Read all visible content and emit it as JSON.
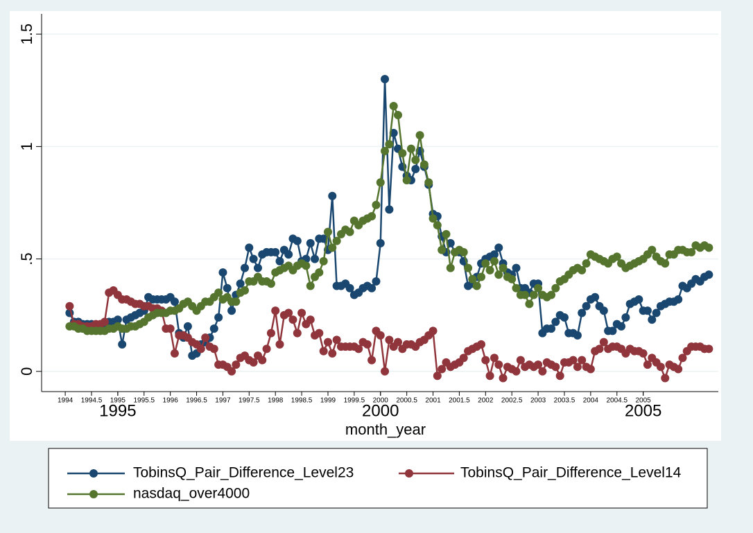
{
  "chart_data": {
    "type": "line",
    "xlabel": "month_year",
    "xlim": [
      1993.55,
      2006.43
    ],
    "ylim": [
      -0.09,
      1.59
    ],
    "yticks": [
      0,
      {
        "value": 0.5,
        "label": ".5"
      },
      1,
      1.5
    ],
    "xticks": [
      1994,
      1994.5,
      1995,
      1995.5,
      1996,
      1996.5,
      1997,
      1997.5,
      1998,
      1998.5,
      1999,
      1999.5,
      2000,
      2000.5,
      2001,
      2001.5,
      2002,
      2002.5,
      2003,
      2003.5,
      2004,
      2004.5,
      2005
    ],
    "xticks_major": [
      1995,
      2000,
      2005
    ],
    "grid": true,
    "x": [
      1994.083,
      1994.167,
      1994.25,
      1994.333,
      1994.417,
      1994.5,
      1994.583,
      1994.667,
      1994.75,
      1994.833,
      1994.917,
      1995,
      1995.083,
      1995.167,
      1995.25,
      1995.333,
      1995.417,
      1995.5,
      1995.583,
      1995.667,
      1995.75,
      1995.833,
      1995.917,
      1996,
      1996.083,
      1996.167,
      1996.25,
      1996.333,
      1996.417,
      1996.5,
      1996.583,
      1996.667,
      1996.75,
      1996.833,
      1996.917,
      1997,
      1997.083,
      1997.167,
      1997.25,
      1997.333,
      1997.417,
      1997.5,
      1997.583,
      1997.667,
      1997.75,
      1997.833,
      1997.917,
      1998,
      1998.083,
      1998.167,
      1998.25,
      1998.333,
      1998.417,
      1998.5,
      1998.583,
      1998.667,
      1998.75,
      1998.833,
      1998.917,
      1999,
      1999.083,
      1999.167,
      1999.25,
      1999.333,
      1999.417,
      1999.5,
      1999.583,
      1999.667,
      1999.75,
      1999.833,
      1999.917,
      2000,
      2000.083,
      2000.167,
      2000.25,
      2000.333,
      2000.417,
      2000.5,
      2000.583,
      2000.667,
      2000.75,
      2000.833,
      2000.917,
      2001,
      2001.083,
      2001.167,
      2001.25,
      2001.333,
      2001.417,
      2001.5,
      2001.583,
      2001.667,
      2001.75,
      2001.833,
      2001.917,
      2002,
      2002.083,
      2002.167,
      2002.25,
      2002.333,
      2002.417,
      2002.5,
      2002.583,
      2002.667,
      2002.75,
      2002.833,
      2002.917,
      2003,
      2003.083,
      2003.167,
      2003.25,
      2003.333,
      2003.417,
      2003.5,
      2003.583,
      2003.667,
      2003.75,
      2003.833,
      2003.917,
      2004,
      2004.083,
      2004.167,
      2004.25,
      2004.333,
      2004.417,
      2004.5,
      2004.583,
      2004.667,
      2004.75,
      2004.833,
      2004.917,
      2005,
      2005.083,
      2005.167,
      2005.25,
      2005.333,
      2005.417,
      2005.5,
      2005.583,
      2005.667,
      2005.75,
      2005.833,
      2005.917,
      2006,
      2006.083,
      2006.167,
      2006.25
    ],
    "series": [
      {
        "name": "TobinsQ_Pair_Difference_Level23",
        "color": "#1a476f",
        "values": [
          0.26,
          0.22,
          0.22,
          0.21,
          0.21,
          0.21,
          0.2,
          0.2,
          0.21,
          0.22,
          0.22,
          0.23,
          0.12,
          0.23,
          0.24,
          0.25,
          0.26,
          0.27,
          0.33,
          0.32,
          0.32,
          0.32,
          0.32,
          0.33,
          0.31,
          0.17,
          0.15,
          0.2,
          0.07,
          0.08,
          0.12,
          0.13,
          0.15,
          0.19,
          0.24,
          0.44,
          0.37,
          0.27,
          0.34,
          0.39,
          0.46,
          0.55,
          0.5,
          0.46,
          0.52,
          0.53,
          0.53,
          0.53,
          0.49,
          0.54,
          0.52,
          0.59,
          0.58,
          0.49,
          0.5,
          0.57,
          0.5,
          0.59,
          0.59,
          0.54,
          0.78,
          0.38,
          0.38,
          0.39,
          0.37,
          0.34,
          0.35,
          0.37,
          0.38,
          0.37,
          0.4,
          0.57,
          1.3,
          0.72,
          1.06,
          0.99,
          0.91,
          0.87,
          0.85,
          0.9,
          0.98,
          0.91,
          0.83,
          0.7,
          0.69,
          0.6,
          0.53,
          0.57,
          0.53,
          0.53,
          0.49,
          0.38,
          0.39,
          0.42,
          0.48,
          0.5,
          0.51,
          0.52,
          0.55,
          0.48,
          0.44,
          0.43,
          0.46,
          0.37,
          0.37,
          0.35,
          0.39,
          0.39,
          0.17,
          0.19,
          0.19,
          0.22,
          0.25,
          0.24,
          0.17,
          0.17,
          0.16,
          0.26,
          0.29,
          0.32,
          0.33,
          0.29,
          0.27,
          0.18,
          0.18,
          0.21,
          0.2,
          0.24,
          0.3,
          0.31,
          0.32,
          0.27,
          0.27,
          0.23,
          0.26,
          0.29,
          0.3,
          0.31,
          0.31,
          0.32,
          0.38,
          0.37,
          0.39,
          0.41,
          0.4,
          0.42,
          0.43
        ]
      },
      {
        "name": "TobinsQ_Pair_Difference_Level14",
        "color": "#90353b",
        "values": [
          0.29,
          0.21,
          0.21,
          0.2,
          0.2,
          0.2,
          0.21,
          0.21,
          0.22,
          0.35,
          0.36,
          0.34,
          0.32,
          0.32,
          0.31,
          0.3,
          0.3,
          0.29,
          0.29,
          0.28,
          0.28,
          0.27,
          0.19,
          0.19,
          0.08,
          0.16,
          0.16,
          0.15,
          0.13,
          0.12,
          0.1,
          0.15,
          0.11,
          0.1,
          0.03,
          0.03,
          0.02,
          0.0,
          0.03,
          0.06,
          0.07,
          0.05,
          0.04,
          0.07,
          0.05,
          0.1,
          0.17,
          0.27,
          0.12,
          0.25,
          0.26,
          0.23,
          0.17,
          0.26,
          0.21,
          0.23,
          0.16,
          0.17,
          0.09,
          0.13,
          0.08,
          0.14,
          0.11,
          0.11,
          0.11,
          0.11,
          0.1,
          0.13,
          0.12,
          0.05,
          0.18,
          0.16,
          0.0,
          0.14,
          0.11,
          0.13,
          0.1,
          0.12,
          0.12,
          0.11,
          0.13,
          0.14,
          0.16,
          0.18,
          -0.02,
          0.01,
          0.04,
          0.02,
          0.03,
          0.04,
          0.06,
          0.09,
          0.1,
          0.11,
          0.12,
          0.05,
          -0.02,
          0.06,
          0.03,
          -0.03,
          0.02,
          0.01,
          0.0,
          0.05,
          0.02,
          0.03,
          0.02,
          0.03,
          0.0,
          0.04,
          0.03,
          0.02,
          -0.02,
          0.04,
          0.04,
          0.05,
          0.02,
          0.05,
          0.02,
          0.01,
          0.09,
          0.1,
          0.13,
          0.1,
          0.11,
          0.11,
          0.1,
          0.08,
          0.1,
          0.09,
          0.09,
          0.08,
          0.03,
          0.06,
          0.04,
          0.02,
          -0.03,
          0.03,
          0.02,
          0.01,
          0.06,
          0.09,
          0.11,
          0.11,
          0.11,
          0.1,
          0.1
        ]
      },
      {
        "name": "nasdaq_over4000",
        "color": "#55752f",
        "values": [
          0.2,
          0.2,
          0.19,
          0.19,
          0.18,
          0.18,
          0.18,
          0.18,
          0.18,
          0.19,
          0.19,
          0.2,
          0.19,
          0.19,
          0.2,
          0.2,
          0.21,
          0.22,
          0.24,
          0.25,
          0.26,
          0.26,
          0.26,
          0.27,
          0.27,
          0.28,
          0.3,
          0.31,
          0.29,
          0.27,
          0.29,
          0.31,
          0.31,
          0.33,
          0.35,
          0.32,
          0.33,
          0.31,
          0.31,
          0.35,
          0.36,
          0.4,
          0.4,
          0.42,
          0.4,
          0.4,
          0.39,
          0.44,
          0.45,
          0.46,
          0.47,
          0.45,
          0.47,
          0.48,
          0.47,
          0.38,
          0.42,
          0.44,
          0.49,
          0.62,
          0.55,
          0.58,
          0.61,
          0.63,
          0.62,
          0.67,
          0.65,
          0.67,
          0.68,
          0.69,
          0.74,
          0.84,
          0.98,
          1.01,
          1.18,
          1.14,
          0.97,
          0.85,
          0.99,
          0.94,
          1.05,
          0.92,
          0.84,
          0.68,
          0.65,
          0.54,
          0.61,
          0.46,
          0.53,
          0.54,
          0.53,
          0.46,
          0.41,
          0.38,
          0.42,
          0.48,
          0.45,
          0.49,
          0.43,
          0.46,
          0.42,
          0.41,
          0.37,
          0.34,
          0.34,
          0.3,
          0.34,
          0.37,
          0.34,
          0.33,
          0.34,
          0.37,
          0.4,
          0.41,
          0.43,
          0.45,
          0.46,
          0.45,
          0.48,
          0.52,
          0.51,
          0.5,
          0.49,
          0.48,
          0.5,
          0.51,
          0.48,
          0.46,
          0.47,
          0.48,
          0.49,
          0.5,
          0.52,
          0.54,
          0.51,
          0.49,
          0.48,
          0.52,
          0.52,
          0.54,
          0.54,
          0.53,
          0.53,
          0.56,
          0.55,
          0.56,
          0.55
        ]
      }
    ]
  }
}
